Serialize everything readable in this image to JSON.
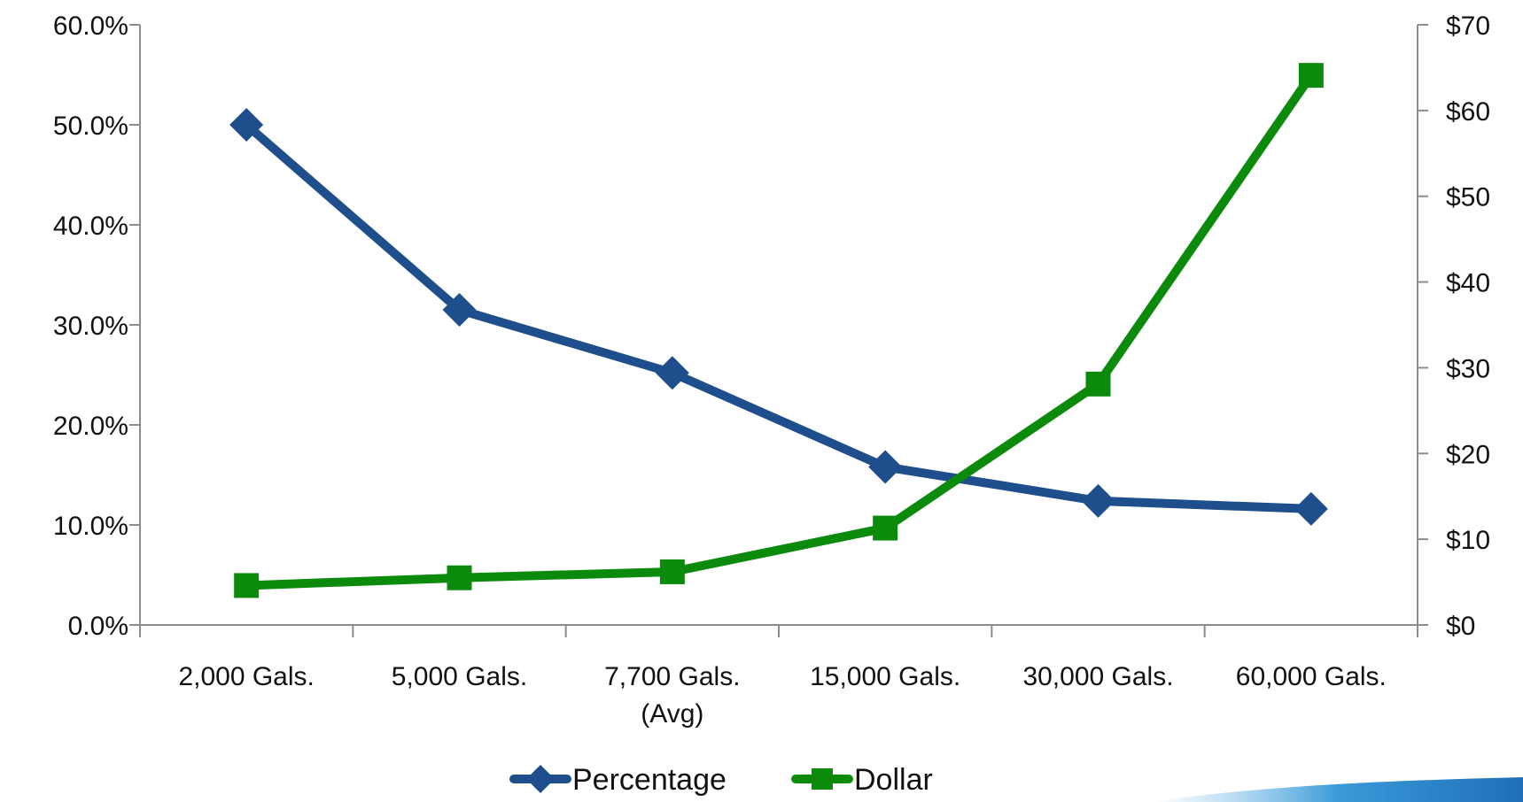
{
  "chart_data": {
    "type": "line",
    "categories": [
      "2,000 Gals.",
      "5,000 Gals.",
      "7,700 Gals.\n(Avg)",
      "15,000 Gals.",
      "30,000 Gals.",
      "60,000 Gals."
    ],
    "series": [
      {
        "name": "Percentage",
        "axis": "left",
        "values": [
          50.0,
          31.5,
          25.2,
          15.8,
          12.4,
          11.6
        ],
        "color": "#1F4E8C",
        "marker": "diamond"
      },
      {
        "name": "Dollar",
        "axis": "right",
        "values": [
          4.6,
          5.5,
          6.2,
          11.3,
          28.1,
          64.1
        ],
        "color": "#0B8A0B",
        "marker": "square"
      }
    ],
    "y_left": {
      "ylim": [
        0,
        60
      ],
      "ticks": [
        0,
        10,
        20,
        30,
        40,
        50,
        60
      ],
      "tick_labels": [
        "0.0%",
        "10.0%",
        "20.0%",
        "30.0%",
        "40.0%",
        "50.0%",
        "60.0%"
      ]
    },
    "y_right": {
      "ylim": [
        0,
        70
      ],
      "ticks": [
        0,
        10,
        20,
        30,
        40,
        50,
        60,
        70
      ],
      "tick_labels": [
        "$0",
        "$10",
        "$20",
        "$30",
        "$40",
        "$50",
        "$60",
        "$70"
      ]
    },
    "legend": {
      "placement": "bottom-center",
      "entries": [
        "Percentage",
        "Dollar"
      ]
    },
    "grid": false,
    "title": "",
    "xlabel": "",
    "ylabel": ""
  }
}
